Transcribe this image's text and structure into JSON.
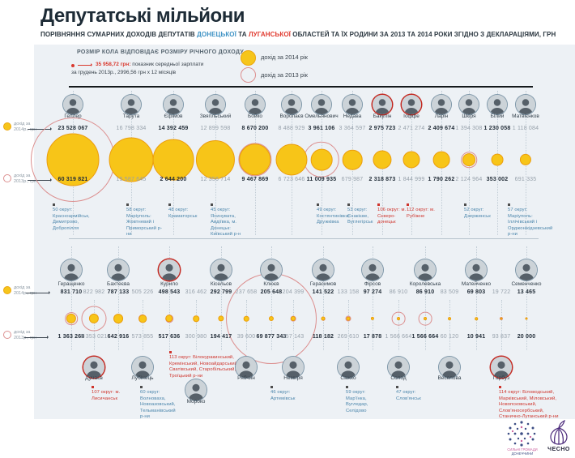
{
  "header": {
    "title": "Депутатські мільйони",
    "subtitle_parts": [
      {
        "text": "ПОРІВНЯННЯ СУМАРНИХ ДОХОДІВ ДЕПУТАТІВ ",
        "color": "dark"
      },
      {
        "text": "ДОНЕЦЬКОЇ",
        "color": "blue"
      },
      {
        "text": " ТА ",
        "color": "dark"
      },
      {
        "text": "ЛУГАНСЬКОЇ",
        "color": "red"
      },
      {
        "text": " ОБЛАСТЕЙ ТА ЇХ РОДИНИ ЗА 2013 ТА 2014 РОКИ ЗГІДНО З ДЕКЛАРАЦІЯМИ, ГРН",
        "color": "dark"
      }
    ]
  },
  "legend": {
    "size_note": "РОЗМІР КОЛА ВІДПОВІДАЄ РОЗМІРУ РІЧНОГО ДОХОДУ.",
    "salary_red": "35 958,72 грн:",
    "salary_rest1": " показник середньої зарплати",
    "salary_rest2": "за грудень 2013р., 2996,56 грн х 12 місяців",
    "item_2014": "дохід за 2014 рік",
    "item_2013": "дохід за 2013 рік"
  },
  "axis": {
    "prefix": "дохід за",
    "y2014": "2014р., грн",
    "y2013": "2013р., грн"
  },
  "chart_data": {
    "type": "bubble",
    "unit": "грн",
    "scale": "area of circle proportional to yearly income",
    "legend_2014": "дохід за 2014 рік",
    "legend_2013": "дохід за 2013 рік",
    "groups": [
      {
        "name": "row1",
        "deputies": [
          {
            "name": "Геллер",
            "income_2014": "23 528 067",
            "income_2013": "60 319 821",
            "district": "50 округ: Красноармійськ, Димитрово, Добропілля",
            "district_color": "blue"
          },
          {
            "name": "Тарута",
            "income_2014": "16 798 334",
            "income_2013": "15 587 645",
            "district": "58 округ: Маріуполь: Жовтневий і Приморський р-ни",
            "district_color": "blue"
          },
          {
            "name": "Єфімов",
            "income_2014": "14 392 459",
            "income_2013": "2 644 200",
            "district": "48 округ: Краматорськ",
            "district_color": "blue"
          },
          {
            "name": "Звягільський",
            "income_2014": "12 899 598",
            "income_2013": "12 356 714",
            "district": "45 округ: Ясинувата, Авдіївка, м. Донецьк: Київський р-н",
            "district_color": "blue"
          },
          {
            "name": "Бойко",
            "income_2014": "8 670 200",
            "income_2013": "9 467 869"
          },
          {
            "name": "Воропаєв",
            "income_2014": "8 488 929",
            "income_2013": "6 723 646"
          },
          {
            "name": "Омельянович",
            "income_2014": "3 961 106",
            "income_2013": "11 009 935",
            "district": "49 округ: Костянтинівка, Дружківка",
            "district_color": "blue"
          },
          {
            "name": "Недава",
            "income_2014": "3 364 597",
            "income_2013": "679 987",
            "district": "53 округ: Єнакієве, Вуглегірськ",
            "district_color": "blue"
          },
          {
            "name": "Бакулін",
            "income_2014": "2 975 723",
            "income_2013": "2 318 873",
            "district": "106 округ: м. Сєверо-донецьк",
            "district_color": "red",
            "red_ring": true
          },
          {
            "name": "Іоффе",
            "income_2014": "2 471 274",
            "income_2013": "1 844 999",
            "district": "112 округ: м. Рубіжне",
            "district_color": "red",
            "red_ring": true
          },
          {
            "name": "Ларін",
            "income_2014": "2 409 674",
            "income_2013": "1 790 262"
          },
          {
            "name": "Шкіря",
            "income_2014": "1 394 308",
            "income_2013": "2 124 964",
            "district": "52 округ: Дзержинськ",
            "district_color": "blue"
          },
          {
            "name": "Білий",
            "income_2014": "1 230 058",
            "income_2013": "353 002"
          },
          {
            "name": "Матвієнков",
            "income_2014": "1 118 084",
            "income_2013": "691 335",
            "district": "57 округ: Маріуполь: Іллічівський і Орджонікідзевський р-ни",
            "district_color": "blue"
          }
        ]
      },
      {
        "name": "row2",
        "deputies": [
          {
            "name": "Геращенко",
            "pos": "top",
            "income_2014": "831 710",
            "income_2013": "1 363 268"
          },
          {
            "name": "Дунаєв",
            "pos": "bottom",
            "income_2014": "822 982",
            "income_2013": "5 353 021",
            "district": "107 округ: м. Лисичанськ",
            "district_color": "red",
            "red_ring": true
          },
          {
            "name": "Бахтеєва",
            "pos": "top",
            "income_2014": "787 133",
            "income_2013": "642 916"
          },
          {
            "name": "Лубінець",
            "pos": "bottom",
            "income_2014": "505 226",
            "income_2013": "573 855",
            "district": "60 округ: Волноваха, Новоазовський, Тельманівський р-ни",
            "district_color": "blue"
          },
          {
            "name": "Курило",
            "pos": "top",
            "income_2014": "498 543",
            "income_2013": "517 636",
            "red_ring": true
          },
          {
            "name": "Мороко",
            "pos": "bottom-low",
            "income_2014": "316 462",
            "income_2013": "300 980",
            "district": "113 округ: Білокуракинський, Кремінський, Новоайдарський, Сватівський, Старобільський, Троїцький р-ни",
            "district_color": "red"
          },
          {
            "name": "Кісельов",
            "pos": "top",
            "income_2014": "292 799",
            "income_2013": "194 417"
          },
          {
            "name": "Рябчин",
            "pos": "bottom",
            "income_2014": "237 658",
            "income_2013": "39 600"
          },
          {
            "name": "Клюєв",
            "pos": "top",
            "income_2014": "205 648",
            "income_2013": "69 877 343"
          },
          {
            "name": "Немиря",
            "pos": "bottom",
            "income_2014": "204 399",
            "income_2013": "257 143",
            "district": "46 округ: Артемівськ",
            "district_color": "blue"
          },
          {
            "name": "Герасимов",
            "pos": "top",
            "income_2014": "141 522",
            "income_2013": "118 182"
          },
          {
            "name": "Сажко",
            "pos": "bottom",
            "income_2014": "133 158",
            "income_2013": "269 610",
            "district": "59 округ: Мар'їнка, Вугледар, Селідово",
            "district_color": "blue"
          },
          {
            "name": "Фірсов",
            "pos": "top",
            "income_2014": "97 274",
            "income_2013": "17 878"
          },
          {
            "name": "Солод",
            "pos": "bottom",
            "income_2014": "86 910",
            "income_2013": "1 566 664",
            "district": "47 округ: Слов'янськ",
            "district_color": "blue"
          },
          {
            "name": "Королевська",
            "pos": "top",
            "income_2014": "86 910",
            "income_2013": "1 566 664"
          },
          {
            "name": "Веселова",
            "pos": "bottom",
            "income_2014": "83 509",
            "income_2013": "60 120"
          },
          {
            "name": "Матейченко",
            "pos": "top",
            "income_2014": "69 803",
            "income_2013": "10 941"
          },
          {
            "name": "Гарбуз",
            "pos": "bottom",
            "income_2014": "19 722",
            "income_2013": "93 837",
            "district": "114 округ: Біловодський, Марківський, Міловський, Новопсковський, Слов'яносербський, Станично-Луганський р-ни",
            "district_color": "red",
            "red_ring": true
          },
          {
            "name": "Семенченко",
            "pos": "top",
            "income_2014": "13 465",
            "income_2013": "20 000"
          }
        ]
      }
    ],
    "colors": {
      "income_2014_fill": "#f7c518",
      "income_2013_outline": "#dc8f8f",
      "donetsk_accent": "#3f93c5",
      "luhansk_accent": "#e03a2f"
    }
  },
  "footer": {
    "communities_1": "СИЛЬНІ ГРОМАДИ",
    "communities_2": "ДОНЕЧЧИНИ",
    "chesno": "ЧЕСНО"
  }
}
